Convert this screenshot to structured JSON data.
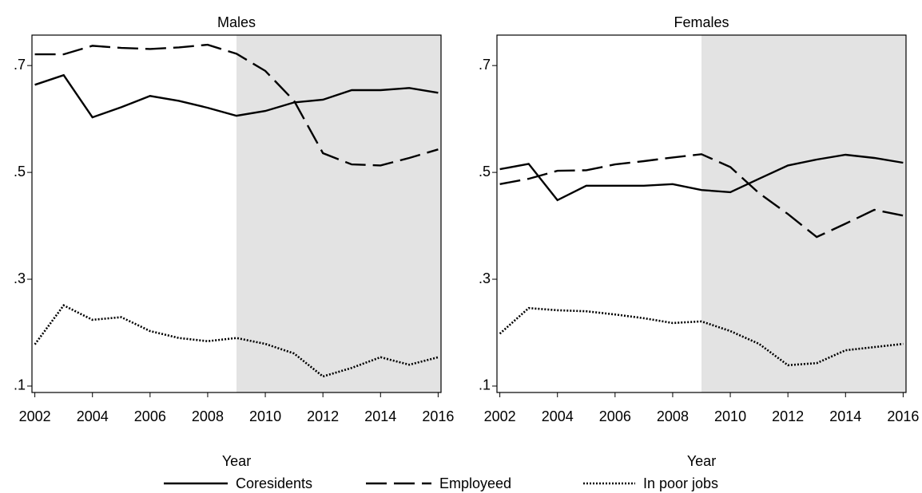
{
  "chart_data": [
    {
      "type": "line",
      "title": "Males",
      "x_label": "Year",
      "x": [
        2002,
        2003,
        2004,
        2005,
        2006,
        2007,
        2008,
        2009,
        2010,
        2011,
        2012,
        2013,
        2014,
        2015,
        2016
      ],
      "xlim": [
        2001.9,
        2016.1
      ],
      "xticks": [
        2002,
        2004,
        2006,
        2008,
        2010,
        2012,
        2014,
        2016
      ],
      "ylim": [
        0.088,
        0.757
      ],
      "yticks": [
        {
          "value": 0.1,
          "label": ".1"
        },
        {
          "value": 0.3,
          "label": ".3"
        },
        {
          "value": 0.5,
          "label": ".5"
        },
        {
          "value": 0.7,
          "label": ".7"
        }
      ],
      "shaded_x": [
        2009,
        2016
      ],
      "shade_color": "#e3e3e3",
      "series": [
        {
          "name": "Coresidents",
          "color": "#000000",
          "dash": "solid",
          "values": [
            0.664,
            0.682,
            0.603,
            0.622,
            0.643,
            0.634,
            0.621,
            0.606,
            0.615,
            0.631,
            0.636,
            0.654,
            0.654,
            0.658,
            0.649
          ]
        },
        {
          "name": "Employeed",
          "color": "#000000",
          "dash": "dash",
          "values": [
            0.721,
            0.721,
            0.737,
            0.733,
            0.731,
            0.734,
            0.739,
            0.722,
            0.69,
            0.634,
            0.536,
            0.515,
            0.513,
            0.527,
            0.543
          ]
        },
        {
          "name": "In poor jobs",
          "color": "#000000",
          "dash": "dot",
          "values": [
            0.178,
            0.251,
            0.224,
            0.229,
            0.203,
            0.19,
            0.184,
            0.19,
            0.179,
            0.161,
            0.118,
            0.134,
            0.154,
            0.14,
            0.154
          ]
        }
      ]
    },
    {
      "type": "line",
      "title": "Females",
      "x_label": "Year",
      "x": [
        2002,
        2003,
        2004,
        2005,
        2006,
        2007,
        2008,
        2009,
        2010,
        2011,
        2012,
        2013,
        2014,
        2015,
        2016
      ],
      "xlim": [
        2001.9,
        2016.1
      ],
      "xticks": [
        2002,
        2004,
        2006,
        2008,
        2010,
        2012,
        2014,
        2016
      ],
      "ylim": [
        0.088,
        0.757
      ],
      "yticks": [
        {
          "value": 0.1,
          "label": ".1"
        },
        {
          "value": 0.3,
          "label": ".3"
        },
        {
          "value": 0.5,
          "label": ".5"
        },
        {
          "value": 0.7,
          "label": ".7"
        }
      ],
      "shaded_x": [
        2009,
        2016
      ],
      "shade_color": "#e3e3e3",
      "series": [
        {
          "name": "Coresidents",
          "color": "#000000",
          "dash": "solid",
          "values": [
            0.506,
            0.516,
            0.448,
            0.475,
            0.475,
            0.475,
            0.478,
            0.467,
            0.463,
            0.488,
            0.513,
            0.524,
            0.533,
            0.527,
            0.518
          ]
        },
        {
          "name": "Employeed",
          "color": "#000000",
          "dash": "dash",
          "values": [
            0.478,
            0.488,
            0.503,
            0.504,
            0.515,
            0.521,
            0.528,
            0.534,
            0.51,
            0.461,
            0.422,
            0.379,
            0.404,
            0.43,
            0.419
          ]
        },
        {
          "name": "In poor jobs",
          "color": "#000000",
          "dash": "dot",
          "values": [
            0.198,
            0.246,
            0.242,
            0.24,
            0.234,
            0.227,
            0.218,
            0.221,
            0.203,
            0.179,
            0.139,
            0.143,
            0.167,
            0.173,
            0.179
          ]
        }
      ]
    }
  ]
}
